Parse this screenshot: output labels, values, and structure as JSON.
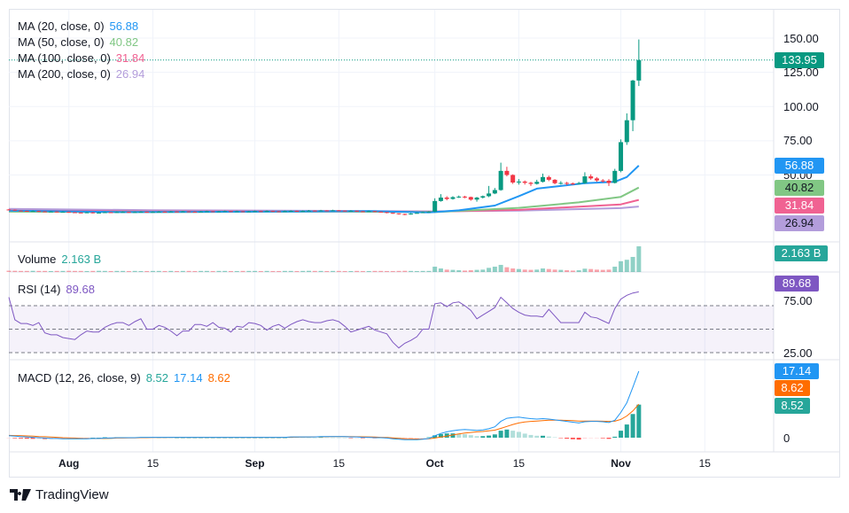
{
  "brand": {
    "name": "TradingView"
  },
  "colors": {
    "up": "#089981",
    "down": "#f23645",
    "ma20": "#2196f3",
    "ma50": "#81c784",
    "ma100": "#f06292",
    "ma200": "#b39ddb",
    "rsi": "#7e57c2",
    "macd": "#2196f3",
    "signal": "#ff6d00",
    "hist_up": "#26a69a",
    "hist_up_light": "#b2dfdb",
    "hist_down": "#ff5252",
    "hist_down_light": "#ffcdd2"
  },
  "legends": {
    "ma20": {
      "label": "MA (20, close, 0)",
      "value": "56.88"
    },
    "ma50": {
      "label": "MA (50, close, 0)",
      "value": "40.82"
    },
    "ma100": {
      "label": "MA (100, close, 0)",
      "value": "31.84"
    },
    "ma200": {
      "label": "MA (200, close, 0)",
      "value": "26.94"
    },
    "volume": {
      "label": "Volume",
      "value": "2.163 B"
    },
    "rsi": {
      "label": "RSI (14)",
      "value": "89.68"
    },
    "macd": {
      "label": "MACD (12, 26, close, 9)",
      "hist": "8.52",
      "macd": "17.14",
      "signal": "8.62"
    }
  },
  "badges": {
    "last_price": "133.95",
    "ma20": "56.88",
    "ma50": "40.82",
    "ma100": "31.84",
    "ma200": "26.94",
    "volume": "2.163 B",
    "rsi": "89.68",
    "macd": "17.14",
    "signal": "8.62",
    "hist": "8.52"
  },
  "price_axis": [
    "150.00",
    "125.00",
    "100.00",
    "75.00",
    "50.00"
  ],
  "rsi_axis": [
    "75.00",
    "25.00"
  ],
  "macd_axis": [
    "0"
  ],
  "time_axis": [
    {
      "label": "Aug",
      "date": "2024-08-01",
      "bold": true
    },
    {
      "label": "15",
      "date": "2024-08-15"
    },
    {
      "label": "Sep",
      "date": "2024-09-01",
      "bold": true
    },
    {
      "label": "15",
      "date": "2024-09-15"
    },
    {
      "label": "Oct",
      "date": "2024-10-01",
      "bold": true
    },
    {
      "label": "15",
      "date": "2024-10-15"
    },
    {
      "label": "Nov",
      "date": "2024-11-01",
      "bold": true
    },
    {
      "label": "15",
      "date": "2024-11-15"
    }
  ],
  "chart_data": {
    "type": "candlestick",
    "start_date": "2024-07-22",
    "first_open": 24.8,
    "close": [
      24.6,
      24.0,
      23.8,
      23.5,
      23.7,
      23.4,
      23.2,
      23.3,
      23.0,
      23.1,
      22.8,
      22.6,
      22.4,
      22.7,
      22.3,
      22.5,
      22.8,
      22.6,
      22.9,
      23.0,
      22.7,
      22.9,
      23.1,
      22.8,
      23.0,
      23.2,
      23.0,
      23.3,
      23.1,
      23.4,
      23.2,
      23.0,
      23.3,
      23.5,
      23.2,
      23.4,
      23.6,
      23.3,
      23.5,
      23.2,
      23.4,
      23.6,
      23.4,
      23.7,
      23.5,
      23.3,
      23.6,
      23.8,
      23.5,
      23.7,
      24.0,
      23.8,
      24.1,
      23.9,
      24.2,
      24.0,
      23.7,
      23.9,
      23.5,
      23.3,
      23.6,
      23.2,
      22.9,
      22.4,
      22.0,
      21.5,
      21.2,
      21.8,
      22.3,
      22.8,
      23.2,
      31.0,
      33.5,
      32.5,
      33.8,
      34.2,
      33.9,
      32.0,
      33.5,
      34.5,
      36.5,
      39.0,
      53.0,
      50.0,
      44.5,
      45.2,
      44.3,
      43.5,
      45.0,
      48.5,
      46.5,
      44.0,
      44.2,
      43.8,
      43.6,
      44.0,
      49.0,
      47.5,
      46.0,
      45.8,
      44.2,
      53.0,
      74.0,
      90.0,
      119.0,
      133.95
    ],
    "high": [
      25.2,
      24.8,
      24.2,
      24.0,
      24.1,
      23.9,
      23.6,
      23.7,
      23.5,
      23.5,
      23.3,
      23.0,
      22.8,
      23.1,
      22.9,
      22.9,
      23.2,
      23.0,
      23.3,
      23.4,
      23.2,
      23.3,
      23.5,
      23.3,
      23.4,
      23.6,
      23.4,
      23.7,
      23.5,
      23.8,
      23.6,
      23.4,
      23.7,
      23.9,
      23.7,
      23.8,
      24.0,
      23.8,
      23.9,
      23.7,
      23.8,
      24.0,
      23.9,
      24.1,
      23.9,
      23.7,
      24.0,
      24.2,
      24.0,
      24.1,
      24.4,
      24.2,
      24.5,
      24.3,
      24.6,
      24.4,
      24.1,
      24.3,
      24.0,
      23.7,
      24.0,
      23.7,
      23.3,
      22.9,
      22.5,
      22.0,
      21.7,
      22.2,
      22.7,
      23.2,
      23.6,
      33.0,
      36.0,
      34.5,
      34.5,
      35.0,
      34.8,
      34.2,
      34.0,
      35.0,
      42.0,
      40.5,
      59.0,
      56.0,
      50.5,
      47.0,
      46.0,
      45.0,
      46.5,
      51.0,
      49.5,
      47.0,
      45.5,
      45.0,
      44.5,
      45.0,
      52.0,
      50.5,
      48.5,
      47.0,
      47.0,
      54.5,
      76.0,
      95.0,
      119.5,
      149.0
    ],
    "low": [
      24.2,
      23.8,
      23.4,
      23.1,
      23.2,
      23.0,
      22.8,
      22.9,
      22.6,
      22.7,
      22.4,
      22.2,
      22.0,
      22.2,
      21.9,
      22.1,
      22.3,
      22.2,
      22.4,
      22.6,
      22.3,
      22.5,
      22.7,
      22.4,
      22.6,
      22.8,
      22.6,
      22.9,
      22.7,
      23.0,
      22.8,
      22.6,
      22.9,
      23.1,
      22.8,
      23.0,
      23.2,
      22.9,
      23.1,
      22.8,
      23.0,
      23.2,
      23.0,
      23.3,
      23.1,
      22.9,
      23.2,
      23.4,
      23.1,
      23.3,
      23.6,
      23.4,
      23.7,
      23.5,
      23.8,
      23.6,
      23.3,
      23.5,
      23.1,
      22.9,
      23.2,
      22.8,
      22.5,
      22.0,
      21.6,
      21.0,
      20.6,
      21.0,
      21.8,
      22.4,
      22.8,
      22.8,
      30.5,
      31.5,
      32.0,
      33.2,
      33.0,
      31.2,
      30.5,
      32.8,
      33.8,
      36.0,
      38.5,
      49.0,
      43.5,
      43.0,
      43.0,
      42.0,
      43.0,
      44.5,
      45.5,
      43.2,
      43.0,
      42.5,
      42.8,
      43.0,
      43.5,
      46.5,
      45.0,
      44.5,
      42.0,
      43.8,
      52.0,
      72.0,
      82.0,
      115.0
    ],
    "volume_b": [
      0.11,
      0.1,
      0.09,
      0.09,
      0.1,
      0.09,
      0.09,
      0.08,
      0.09,
      0.09,
      0.1,
      0.09,
      0.09,
      0.08,
      0.09,
      0.1,
      0.09,
      0.08,
      0.09,
      0.09,
      0.08,
      0.09,
      0.08,
      0.08,
      0.09,
      0.09,
      0.08,
      0.09,
      0.08,
      0.09,
      0.09,
      0.08,
      0.09,
      0.09,
      0.08,
      0.09,
      0.09,
      0.08,
      0.08,
      0.09,
      0.09,
      0.09,
      0.08,
      0.09,
      0.08,
      0.08,
      0.09,
      0.09,
      0.08,
      0.09,
      0.1,
      0.09,
      0.09,
      0.08,
      0.09,
      0.09,
      0.08,
      0.08,
      0.09,
      0.08,
      0.08,
      0.09,
      0.09,
      0.08,
      0.08,
      0.09,
      0.1,
      0.09,
      0.08,
      0.09,
      0.09,
      0.45,
      0.3,
      0.2,
      0.18,
      0.15,
      0.12,
      0.15,
      0.18,
      0.2,
      0.35,
      0.45,
      0.6,
      0.4,
      0.3,
      0.25,
      0.2,
      0.18,
      0.2,
      0.3,
      0.25,
      0.2,
      0.18,
      0.15,
      0.12,
      0.15,
      0.28,
      0.25,
      0.2,
      0.18,
      0.2,
      0.45,
      0.91,
      1.03,
      1.27,
      2.163
    ],
    "rsi": [
      84,
      60,
      56,
      56,
      54,
      57,
      46,
      44,
      44,
      41,
      40,
      39,
      44,
      48,
      47,
      47,
      52,
      55,
      57,
      57,
      54,
      58,
      61,
      50,
      50,
      54,
      52,
      48,
      43,
      48,
      48,
      55,
      55,
      53,
      57,
      52,
      51,
      47,
      53,
      52,
      57,
      56,
      54,
      49,
      53,
      55,
      51,
      55,
      58,
      60,
      58,
      57,
      57,
      59,
      60,
      58,
      53,
      47,
      49,
      51,
      53,
      49,
      47,
      45,
      36,
      30,
      35,
      38,
      42,
      50,
      50,
      77,
      78,
      74,
      78,
      79,
      75,
      70,
      61,
      65,
      69,
      73,
      84,
      78,
      72,
      68,
      65,
      64,
      64,
      63,
      71,
      64,
      57,
      57,
      57,
      57,
      68,
      63,
      62,
      59,
      56,
      72,
      82,
      86,
      88.5,
      89.68
    ],
    "macd": [
      0.5,
      0.4,
      0.3,
      0.2,
      0.1,
      0.0,
      -0.1,
      -0.2,
      -0.2,
      -0.3,
      -0.3,
      -0.3,
      -0.3,
      -0.3,
      -0.2,
      -0.2,
      -0.1,
      -0.1,
      0,
      0,
      0,
      0,
      0.1,
      0.1,
      0.1,
      0.1,
      0.1,
      0.1,
      0.1,
      0.1,
      0.1,
      0.1,
      0.1,
      0.1,
      0.1,
      0.1,
      0.1,
      0.1,
      0.1,
      0.1,
      0.1,
      0.1,
      0.1,
      0.1,
      0.1,
      0.1,
      0.1,
      0.2,
      0.2,
      0.2,
      0.2,
      0.2,
      0.3,
      0.3,
      0.3,
      0.3,
      0.3,
      0.2,
      0.2,
      0.1,
      0.1,
      0,
      0,
      -0.1,
      -0.3,
      -0.4,
      -0.5,
      -0.5,
      -0.5,
      -0.4,
      -0.2,
      0.5,
      1.1,
      1.5,
      1.8,
      2.0,
      2.1,
      2.0,
      1.9,
      2.0,
      2.3,
      2.8,
      4.2,
      5.0,
      5.2,
      5.3,
      5.1,
      4.9,
      4.8,
      4.9,
      4.8,
      4.6,
      4.4,
      4.2,
      4.0,
      3.8,
      4.1,
      4.2,
      4.2,
      4.1,
      3.9,
      4.5,
      6.5,
      9.0,
      13.0,
      17.14
    ],
    "signal": [
      0.6,
      0.55,
      0.5,
      0.45,
      0.4,
      0.3,
      0.25,
      0.15,
      0.1,
      0.0,
      -0.05,
      -0.1,
      -0.15,
      -0.2,
      -0.2,
      -0.2,
      -0.2,
      -0.15,
      -0.1,
      -0.1,
      -0.05,
      -0.05,
      0,
      0,
      0.05,
      0.05,
      0.05,
      0.1,
      0.1,
      0.1,
      0.1,
      0.1,
      0.1,
      0.1,
      0.1,
      0.1,
      0.1,
      0.1,
      0.1,
      0.1,
      0.1,
      0.1,
      0.1,
      0.1,
      0.1,
      0.1,
      0.1,
      0.12,
      0.14,
      0.16,
      0.18,
      0.2,
      0.22,
      0.25,
      0.27,
      0.28,
      0.29,
      0.28,
      0.26,
      0.23,
      0.2,
      0.15,
      0.1,
      0.05,
      -0.05,
      -0.15,
      -0.25,
      -0.3,
      -0.35,
      -0.35,
      -0.3,
      -0.1,
      0.15,
      0.4,
      0.7,
      0.95,
      1.2,
      1.35,
      1.5,
      1.6,
      1.75,
      1.95,
      2.4,
      2.9,
      3.4,
      3.8,
      4.05,
      4.2,
      4.3,
      4.4,
      4.5,
      4.5,
      4.5,
      4.45,
      4.4,
      4.3,
      4.3,
      4.3,
      4.3,
      4.25,
      4.2,
      4.25,
      4.7,
      5.6,
      6.9,
      8.62
    ],
    "ma": {
      "ma20": [
        [
          "2024-07-22",
          23.9
        ],
        [
          "2024-08-10",
          22.9
        ],
        [
          "2024-09-01",
          23.2
        ],
        [
          "2024-09-20",
          23.6
        ],
        [
          "2024-09-30",
          22.6
        ],
        [
          "2024-10-05",
          24.2
        ],
        [
          "2024-10-11",
          27.7
        ],
        [
          "2024-10-15",
          34.5
        ],
        [
          "2024-10-18",
          40.0
        ],
        [
          "2024-10-22",
          42.0
        ],
        [
          "2024-10-26",
          44.0
        ],
        [
          "2024-10-31",
          45.0
        ],
        [
          "2024-11-02",
          48.5
        ],
        [
          "2024-11-04",
          56.88
        ]
      ],
      "ma50": [
        [
          "2024-07-22",
          23.2
        ],
        [
          "2024-08-15",
          22.9
        ],
        [
          "2024-09-15",
          23.3
        ],
        [
          "2024-10-01",
          22.9
        ],
        [
          "2024-10-15",
          26.0
        ],
        [
          "2024-10-25",
          30.0
        ],
        [
          "2024-11-01",
          34.0
        ],
        [
          "2024-11-04",
          40.82
        ]
      ],
      "ma100": [
        [
          "2024-07-22",
          24.0
        ],
        [
          "2024-08-15",
          23.4
        ],
        [
          "2024-09-15",
          23.3
        ],
        [
          "2024-10-01",
          23.2
        ],
        [
          "2024-10-15",
          24.5
        ],
        [
          "2024-11-01",
          28.5
        ],
        [
          "2024-11-04",
          31.84
        ]
      ],
      "ma200": [
        [
          "2024-07-22",
          25.2
        ],
        [
          "2024-08-15",
          24.3
        ],
        [
          "2024-09-15",
          23.8
        ],
        [
          "2024-10-01",
          23.4
        ],
        [
          "2024-10-15",
          24.0
        ],
        [
          "2024-11-01",
          25.8
        ],
        [
          "2024-11-04",
          26.94
        ]
      ]
    },
    "price_range": [
      20,
      150
    ],
    "rsi_levels": [
      75,
      50,
      25
    ],
    "grid": true
  }
}
